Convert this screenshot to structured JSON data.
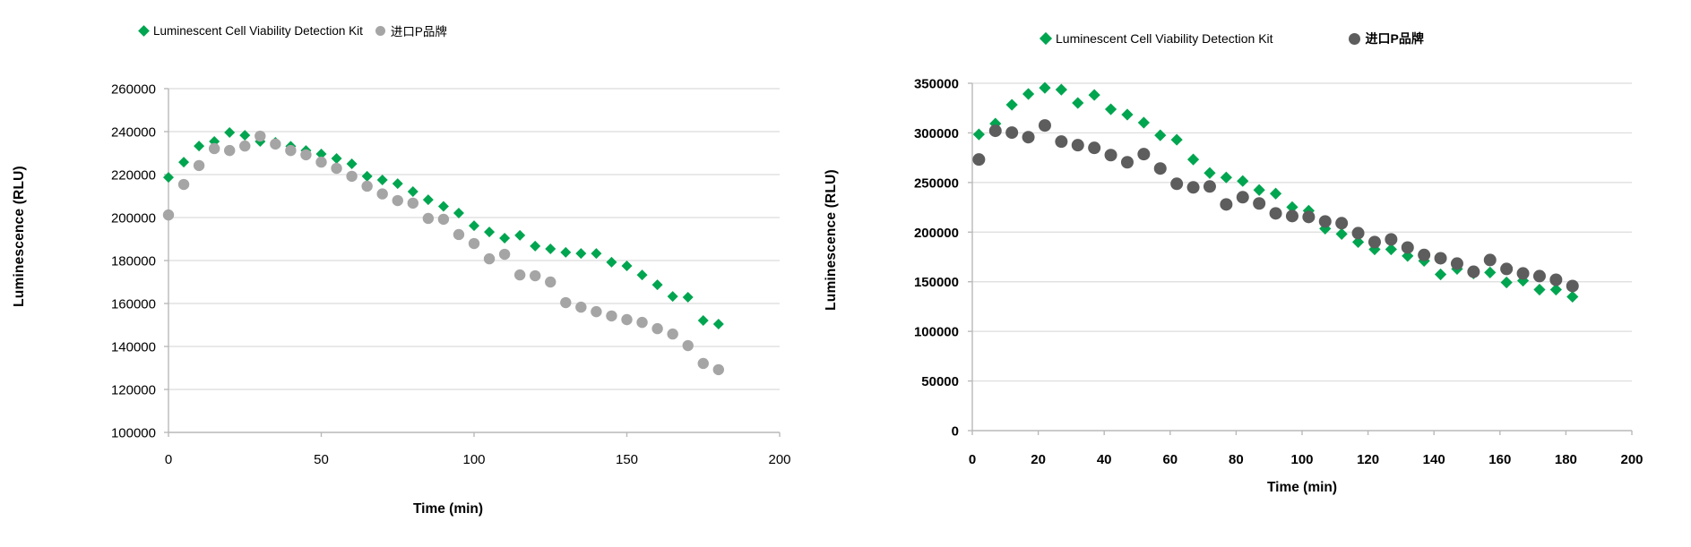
{
  "page": {
    "background": "#FFFFFF"
  },
  "colors": {
    "kit_green": "#00A550",
    "p_gray_left": "#A5A5A5",
    "p_gray_right": "#5D5D5D",
    "gridline": "#DCDCDC",
    "axis": "#B9B9B9",
    "text": "#000000"
  },
  "chart_data": [
    {
      "type": "scatter",
      "title": "",
      "xlabel": "Time (min)",
      "ylabel": "Luminescence (RLU)",
      "legend_position": "top",
      "grid": "horizontal",
      "xlim": [
        0,
        200
      ],
      "ylim": [
        100000,
        260000
      ],
      "xticks": [
        0,
        50,
        100,
        150,
        200
      ],
      "yticks": [
        100000,
        120000,
        140000,
        160000,
        180000,
        200000,
        220000,
        240000,
        260000
      ],
      "legend": [
        {
          "label": "Luminescent Cell Viability Detection Kit",
          "marker": "diamond",
          "color": "#00A550"
        },
        {
          "label": "进口P品牌",
          "marker": "circle",
          "color": "#A5A5A5"
        }
      ],
      "x": [
        0,
        5,
        10,
        15,
        20,
        25,
        30,
        35,
        40,
        45,
        50,
        55,
        60,
        65,
        70,
        75,
        80,
        85,
        90,
        95,
        100,
        105,
        110,
        115,
        120,
        125,
        130,
        135,
        140,
        145,
        150,
        155,
        160,
        165,
        170,
        175,
        180
      ],
      "series": [
        {
          "name": "Luminescent Cell Viability Detection Kit",
          "marker": "diamond",
          "color": "#00A550",
          "values": [
            218700,
            225800,
            233300,
            235400,
            239600,
            238300,
            235400,
            235000,
            233200,
            231200,
            229600,
            227500,
            225000,
            219200,
            217500,
            215800,
            212100,
            208300,
            205200,
            202100,
            196200,
            193300,
            190400,
            191700,
            186700,
            185400,
            183800,
            183300,
            183300,
            179200,
            177500,
            173300,
            168700,
            163300,
            162900,
            152100,
            150400
          ]
        },
        {
          "name": "进口P品牌",
          "marker": "circle",
          "color": "#A5A5A5",
          "values": [
            201200,
            215400,
            224200,
            232100,
            231200,
            233300,
            237900,
            234200,
            231200,
            229200,
            225800,
            222900,
            219200,
            214600,
            211000,
            207900,
            206700,
            199600,
            199200,
            192100,
            187900,
            180800,
            182900,
            173300,
            172900,
            170000,
            160400,
            158300,
            156200,
            154200,
            152500,
            151200,
            148300,
            145800,
            140400,
            132100,
            129200
          ]
        }
      ]
    },
    {
      "type": "scatter",
      "title": "",
      "xlabel": "Time  (min)",
      "ylabel": "Luminescence  (RLU)",
      "legend_position": "top",
      "grid": "horizontal",
      "xlim": [
        0,
        200
      ],
      "ylim": [
        0,
        350000
      ],
      "xticks": [
        0,
        20,
        40,
        60,
        80,
        100,
        120,
        140,
        160,
        180,
        200
      ],
      "yticks": [
        0,
        50000,
        100000,
        150000,
        200000,
        250000,
        300000,
        350000
      ],
      "legend": [
        {
          "label": "Luminescent Cell Viability Detection Kit",
          "marker": "diamond",
          "color": "#00A550"
        },
        {
          "label": "进口P品牌",
          "marker": "circle",
          "color": "#5D5D5D"
        }
      ],
      "x": [
        2,
        7,
        12,
        17,
        22,
        27,
        32,
        37,
        42,
        47,
        52,
        57,
        62,
        67,
        72,
        77,
        82,
        87,
        92,
        97,
        102,
        107,
        112,
        117,
        122,
        127,
        132,
        137,
        142,
        147,
        152,
        157,
        162,
        167,
        172,
        177,
        182
      ],
      "series": [
        {
          "name": "Luminescent Cell Viability Detection Kit",
          "marker": "diamond",
          "color": "#00A550",
          "values": [
            298500,
            309300,
            328300,
            339200,
            345400,
            343600,
            330100,
            338200,
            323800,
            318400,
            310300,
            297600,
            293100,
            273200,
            259600,
            255100,
            251500,
            242400,
            238800,
            225200,
            221600,
            203500,
            198100,
            190000,
            182700,
            182700,
            176000,
            171000,
            157400,
            162900,
            158400,
            159300,
            149300,
            151100,
            142100,
            142100,
            134900
          ]
        },
        {
          "name": "进口P品牌",
          "marker": "circle",
          "color": "#5D5D5D",
          "values": [
            273200,
            302100,
            300300,
            295700,
            307500,
            291200,
            287600,
            284900,
            277600,
            270400,
            278600,
            264100,
            248700,
            245100,
            246000,
            227900,
            235200,
            228900,
            218900,
            216200,
            215300,
            210800,
            209000,
            199000,
            190000,
            192700,
            184500,
            177000,
            173700,
            168300,
            160100,
            171900,
            162900,
            158400,
            155700,
            152000,
            145700
          ]
        }
      ]
    }
  ]
}
